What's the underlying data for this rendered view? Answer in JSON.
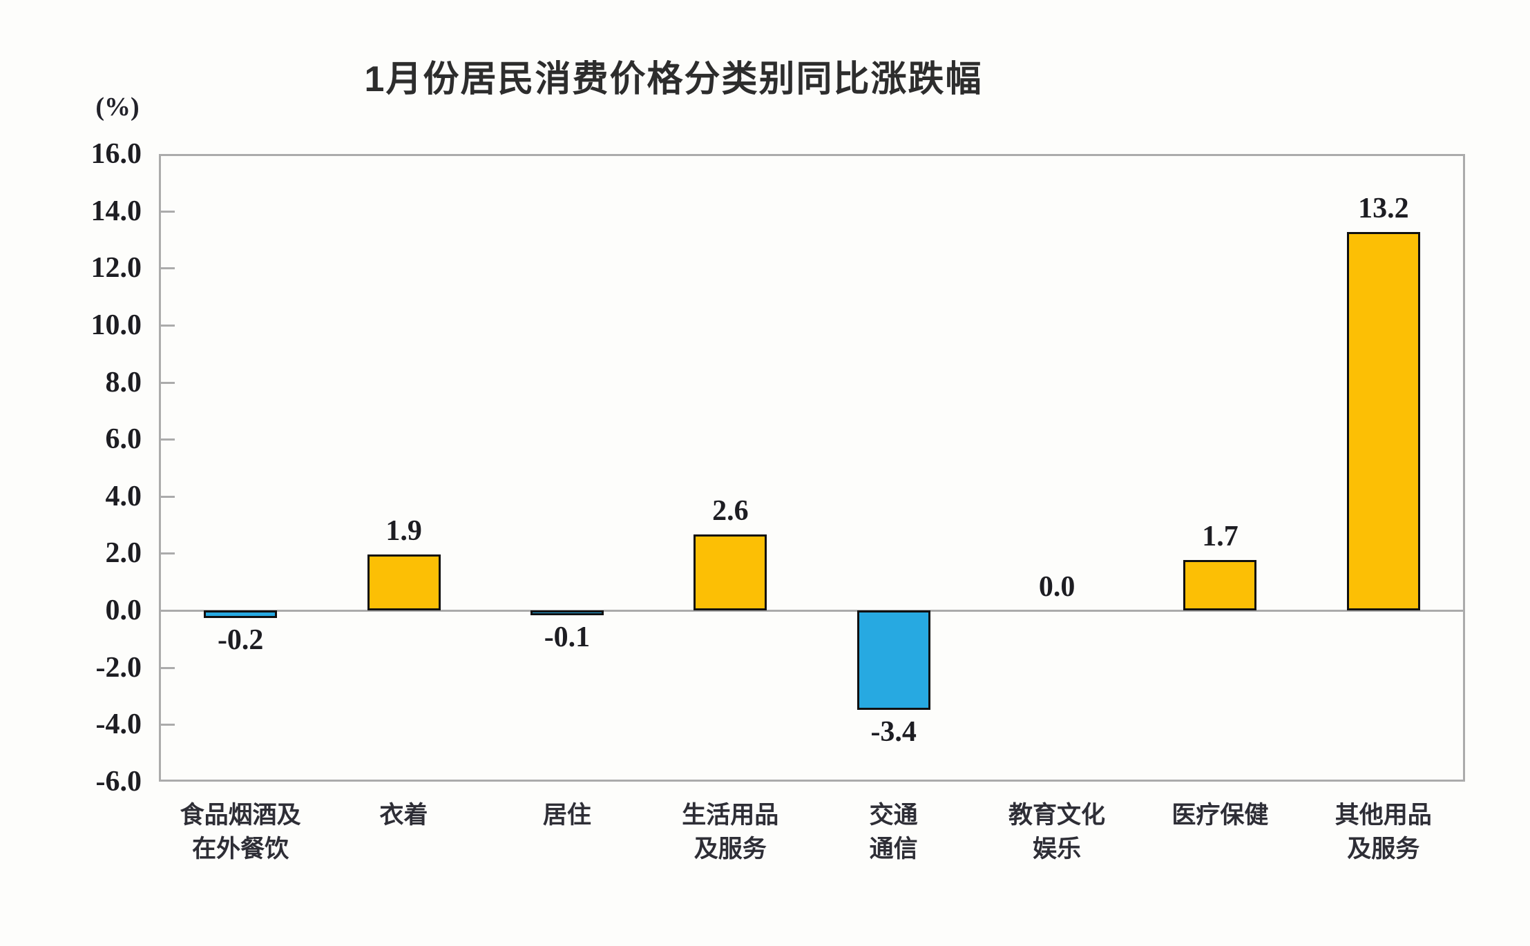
{
  "page": {
    "background": "#FDFDFB"
  },
  "chart_data": {
    "type": "bar",
    "title": "1月份居民消费价格分类别同比涨跌幅",
    "unit_label": "(%)",
    "categories": [
      "食品烟酒及\n在外餐饮",
      "衣着",
      "居住",
      "生活用品\n及服务",
      "交通\n通信",
      "教育文化\n娱乐",
      "医疗保健",
      "其他用品\n及服务"
    ],
    "values": [
      -0.2,
      1.9,
      -0.1,
      2.6,
      -3.4,
      0.0,
      1.7,
      13.2
    ],
    "value_labels": [
      "-0.2",
      "1.9",
      "-0.1",
      "2.6",
      "-3.4",
      "0.0",
      "1.7",
      "13.2"
    ],
    "xlabel": "",
    "ylabel": "(%)",
    "y_axis": {
      "ylim": [
        -6.0,
        16.0
      ],
      "tick_step": 2.0,
      "ticks": [
        16.0,
        14.0,
        12.0,
        10.0,
        8.0,
        6.0,
        4.0,
        2.0,
        0.0,
        -2.0,
        -4.0,
        -6.0
      ],
      "tick_labels": [
        "16.0",
        "14.0",
        "12.0",
        "10.0",
        "8.0",
        "6.0",
        "4.0",
        "2.0",
        "0.0",
        "-2.0",
        "-4.0",
        "-6.0"
      ]
    },
    "grid": "off",
    "legend": "none",
    "colors": {
      "positive_bar": "#FCBF05",
      "negative_bar": "#27A9E1",
      "bar_border": "#101010",
      "axis_line": "#ABABAB",
      "text": "#1d1d22"
    }
  }
}
